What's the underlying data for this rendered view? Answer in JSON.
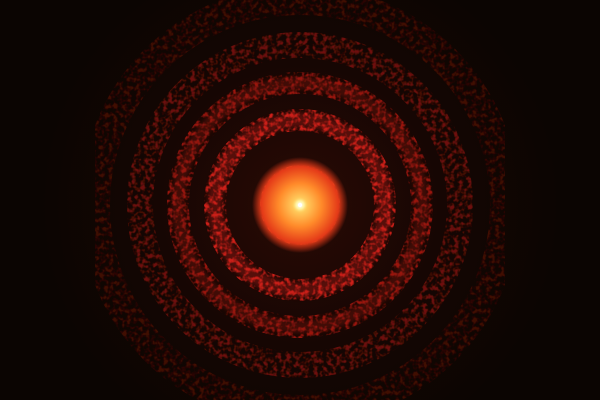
{
  "scene": {
    "subject": "laser-diffraction-airy-pattern",
    "colors": {
      "background": "#0b0502",
      "ring": "#d11e1a",
      "ring_dim": "#7a120c",
      "core": "#ff6a1e",
      "hotspot": "#fff0a8"
    }
  }
}
